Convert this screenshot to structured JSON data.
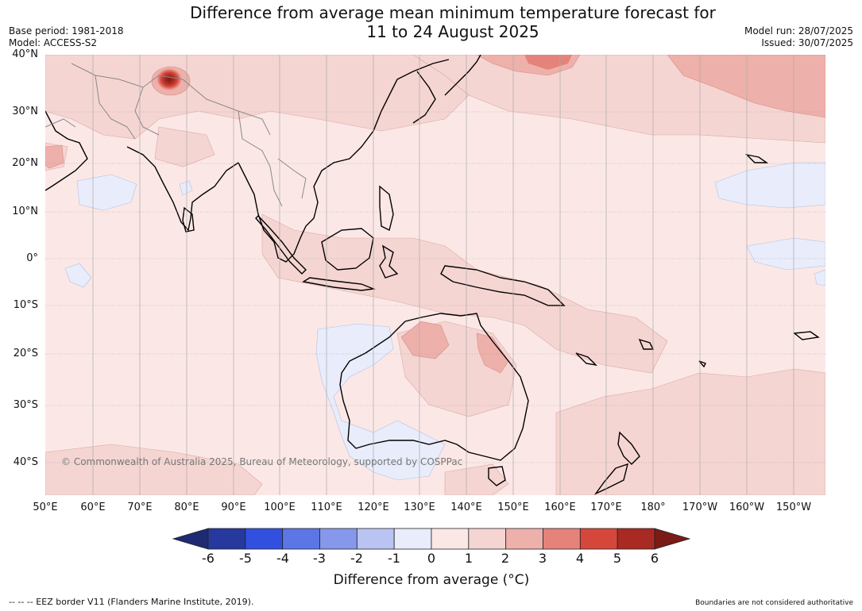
{
  "title": {
    "line1": "Difference from average mean minimum temperature forecast for",
    "line2": "11 to 24 August 2025"
  },
  "meta": {
    "base_period": "Base period: 1981-2018",
    "model": "Model: ACCESS-S2",
    "model_run": "Model run: 28/07/2025",
    "issued": "Issued: 30/07/2025"
  },
  "map": {
    "lat_labels": [
      "40°N",
      "30°N",
      "20°N",
      "10°N",
      "0°",
      "10°S",
      "20°S",
      "30°S",
      "40°S"
    ],
    "lon_labels": [
      "50°E",
      "60°E",
      "70°E",
      "80°E",
      "90°E",
      "100°E",
      "110°E",
      "120°E",
      "130°E",
      "140°E",
      "150°E",
      "160°E",
      "170°E",
      "180°",
      "170°W",
      "160°W",
      "150°W"
    ],
    "copyright": "© Commonwealth of Australia 2025, Bureau of Meteorology, supported by COSPPac",
    "palette": {
      "0_1": "#fbe8e6",
      "1_2": "#f5d5d2",
      "2_3": "#eeb0ab",
      "3_4": "#e5837b",
      "4_5": "#d6473b",
      "5_6": "#a82a22",
      "neg_0_1": "#e8ecfb"
    }
  },
  "colorbar": {
    "ticks": [
      "-6",
      "-5",
      "-4",
      "-3",
      "-2",
      "-1",
      "0",
      "1",
      "2",
      "3",
      "4",
      "5",
      "6"
    ],
    "colors": [
      "#25399e",
      "#3150e0",
      "#5c76e5",
      "#8698ec",
      "#bac4f3",
      "#e8ecfb",
      "#fbe8e6",
      "#f5d5d2",
      "#eeb0ab",
      "#e5837b",
      "#d6473b",
      "#a82a22"
    ],
    "under_color": "#1f2a73",
    "over_color": "#7a1b16",
    "label": "Difference from average (°C)"
  },
  "footer": {
    "eez_note": "--  --  -- EEZ border V11 (Flanders Marine Institute, 2019).",
    "disclaimer": "Boundaries are not considered authoritative"
  }
}
